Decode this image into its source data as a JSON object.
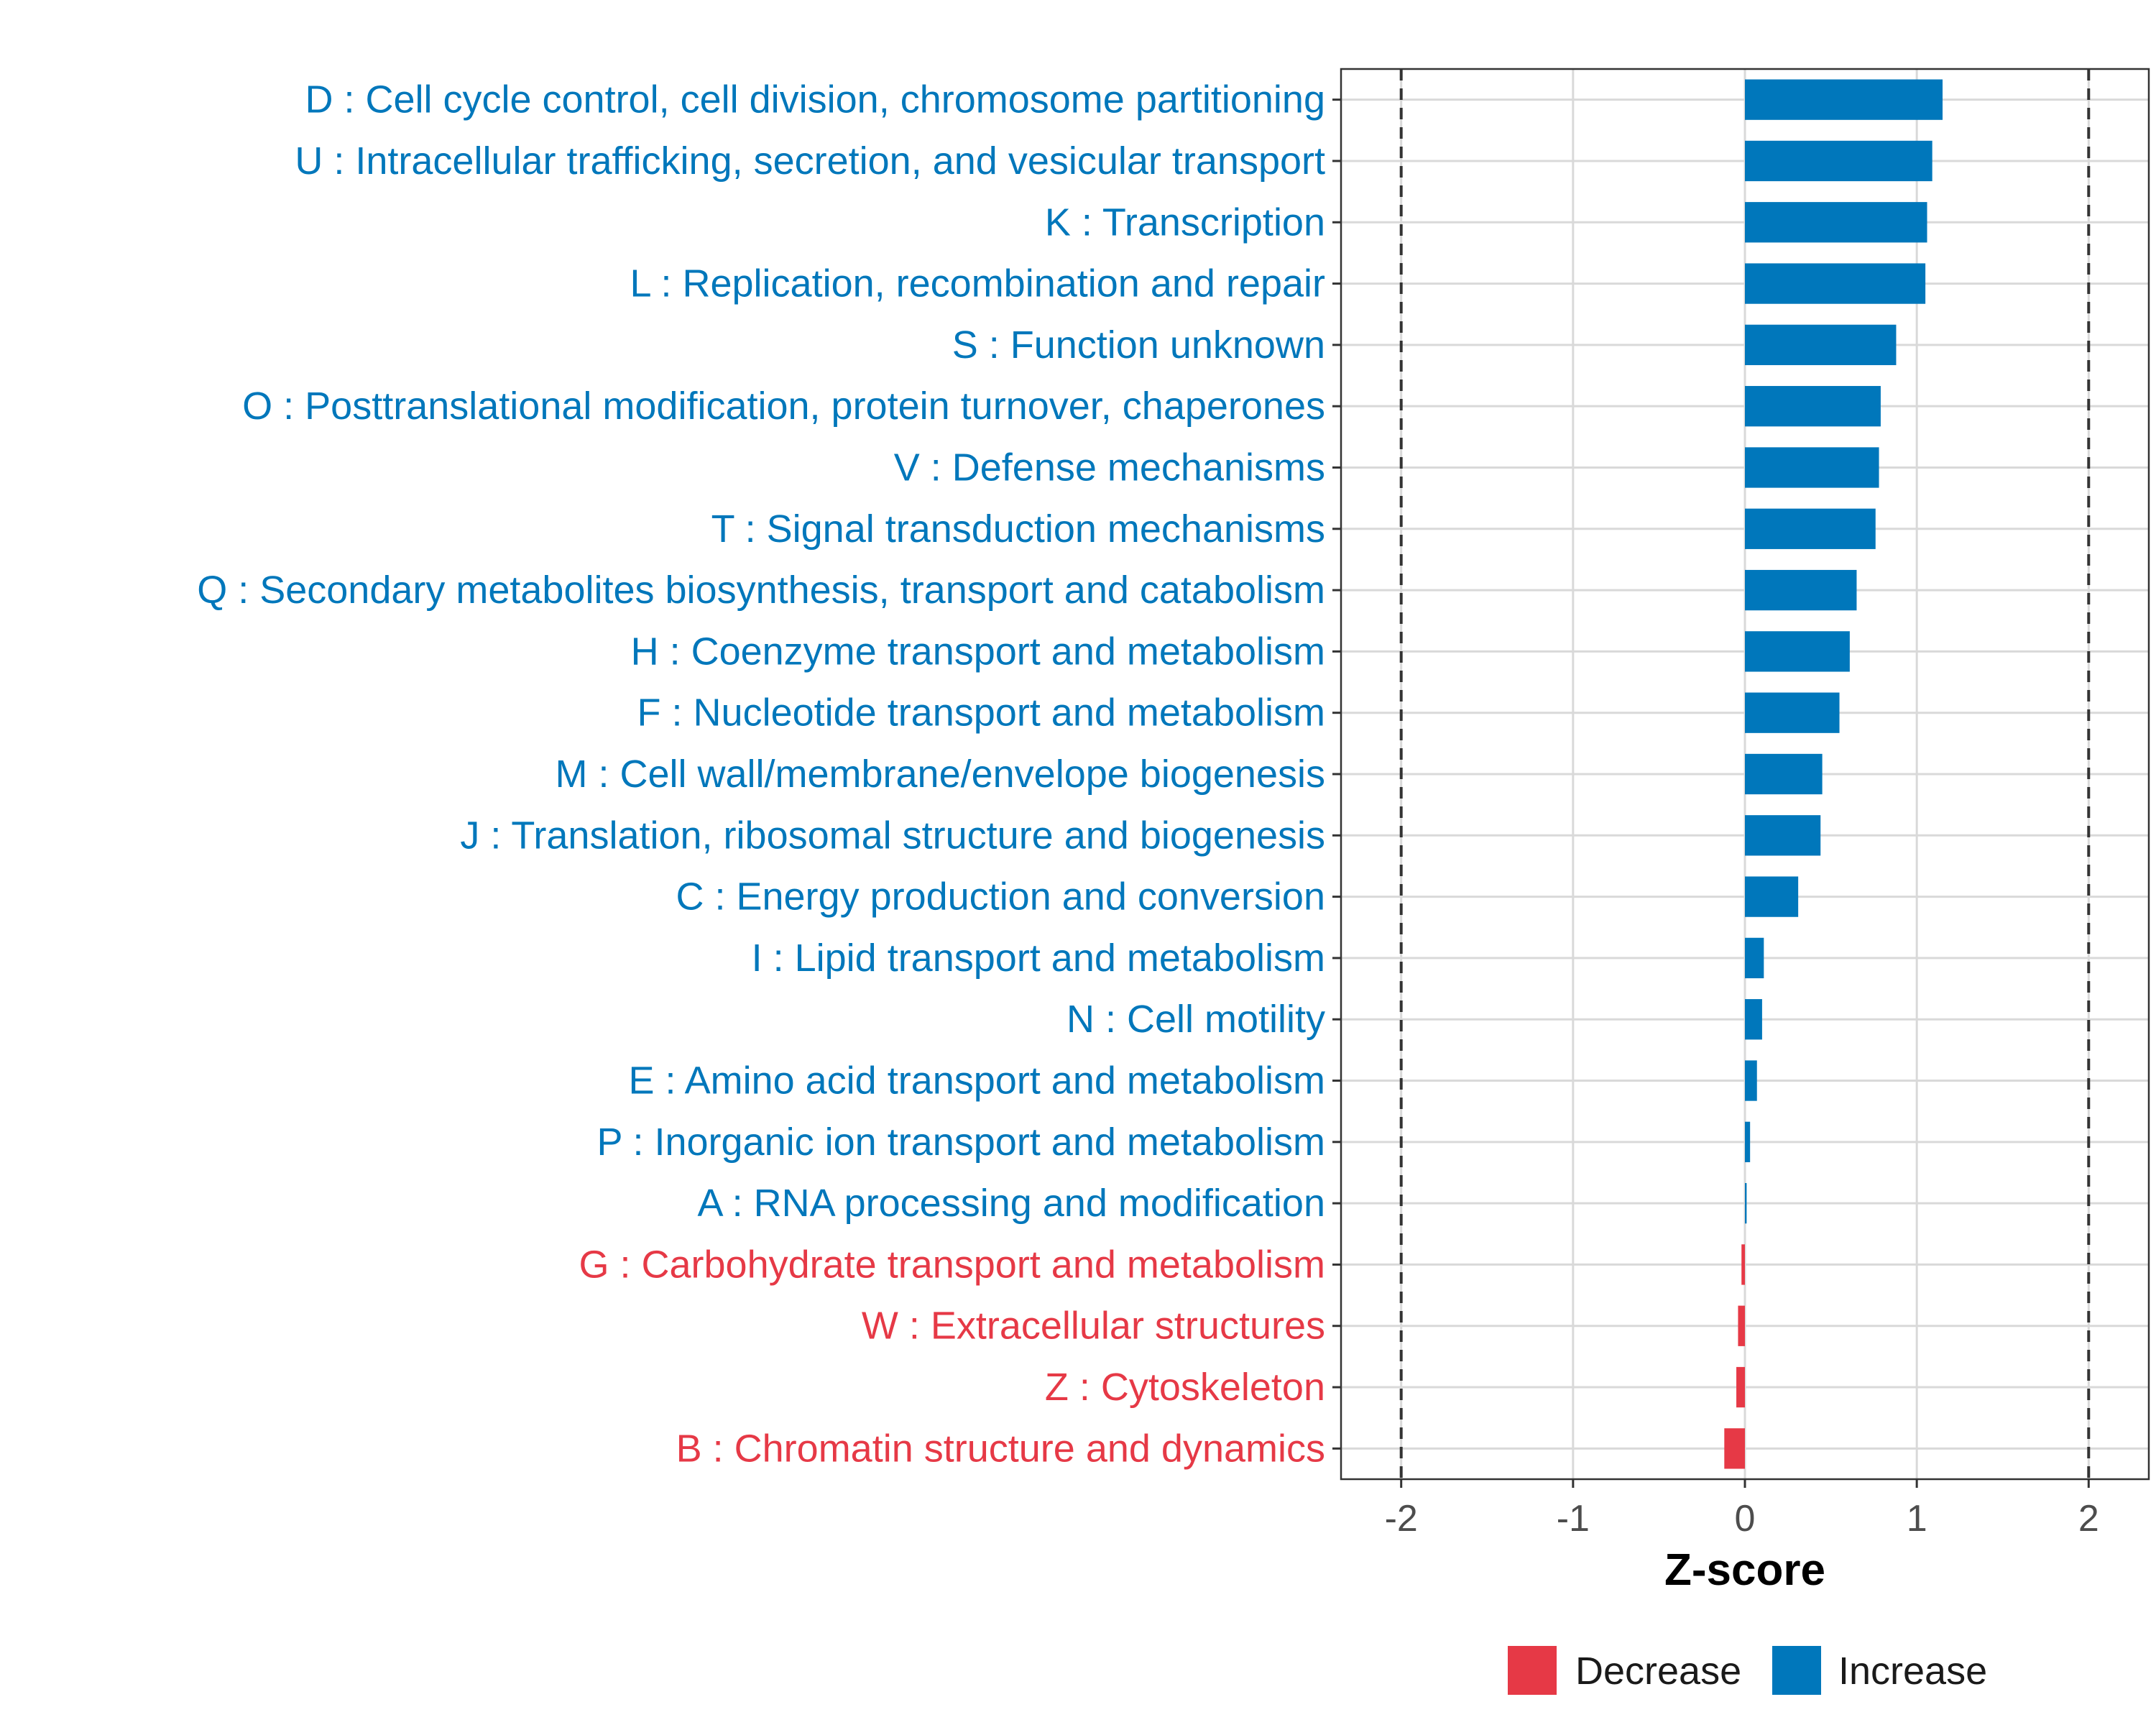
{
  "chart_data": {
    "type": "bar",
    "orientation": "horizontal",
    "title": "",
    "xlabel": "Z-score",
    "ylabel": "",
    "xlim": [
      -2.35,
      2.35
    ],
    "xticks": [
      -2,
      -1,
      0,
      1,
      2
    ],
    "xtick_labels": [
      "-2",
      "-1",
      "0",
      "1",
      "2"
    ],
    "threshold_lines": [
      -2,
      2
    ],
    "grid": true,
    "legend_position": "bottom",
    "colors": {
      "Decrease": "#e63946",
      "Increase": "#0077bb"
    },
    "categories": [
      "D : Cell cycle control, cell division, chromosome partitioning",
      "U : Intracellular trafficking, secretion, and vesicular transport",
      "K : Transcription",
      "L : Replication, recombination and repair",
      "S : Function unknown",
      "O : Posttranslational modification, protein turnover, chaperones",
      "V : Defense mechanisms",
      "T : Signal transduction mechanisms",
      "Q : Secondary metabolites biosynthesis, transport and catabolism",
      "H : Coenzyme transport and metabolism",
      "F : Nucleotide transport and metabolism",
      "M : Cell wall/membrane/envelope biogenesis",
      "J : Translation, ribosomal structure and biogenesis",
      "C : Energy production and conversion",
      "I : Lipid transport and metabolism",
      "N : Cell motility",
      "E : Amino acid transport and metabolism",
      "P : Inorganic ion transport and metabolism",
      "A : RNA processing and modification",
      "G : Carbohydrate transport and metabolism",
      "W : Extracellular structures",
      "Z : Cytoskeleton",
      "B : Chromatin structure and dynamics"
    ],
    "values": [
      1.15,
      1.09,
      1.06,
      1.05,
      0.88,
      0.79,
      0.78,
      0.76,
      0.65,
      0.61,
      0.55,
      0.45,
      0.44,
      0.31,
      0.11,
      0.1,
      0.07,
      0.03,
      0.01,
      -0.02,
      -0.04,
      -0.05,
      -0.12
    ],
    "groups": [
      "Increase",
      "Increase",
      "Increase",
      "Increase",
      "Increase",
      "Increase",
      "Increase",
      "Increase",
      "Increase",
      "Increase",
      "Increase",
      "Increase",
      "Increase",
      "Increase",
      "Increase",
      "Increase",
      "Increase",
      "Increase",
      "Increase",
      "Decrease",
      "Decrease",
      "Decrease",
      "Decrease"
    ],
    "legend": [
      "Decrease",
      "Increase"
    ]
  }
}
